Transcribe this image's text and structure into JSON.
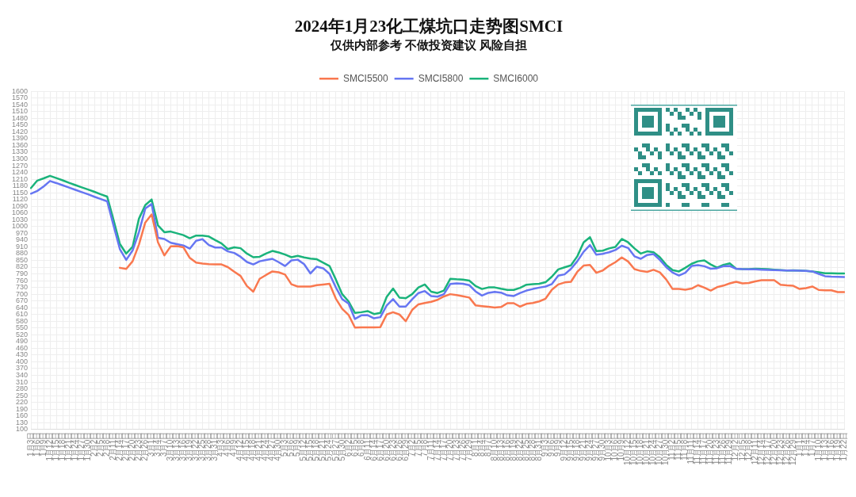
{
  "chart_data": {
    "type": "line",
    "title": "2024年1月23化工煤坑口走势图SMCI",
    "subtitle": "仅供内部参考 不做投资建议 风险自担",
    "categories": [
      "1月3日",
      "1月6日",
      "1月9日",
      "1月12日",
      "1月15日",
      "1月18日",
      "1月21日",
      "1月24日",
      "1月27日",
      "1月30日",
      "2月2日",
      "2月5日",
      "2月8日",
      "2月11日",
      "2月14日",
      "2月17日",
      "2月20日",
      "2月23日",
      "2月26日",
      "3月1日",
      "3月4日",
      "3月7日",
      "3月10日",
      "3月13日",
      "3月16日",
      "3月19日",
      "3月22日",
      "3月25日",
      "3月28日",
      "3月31日",
      "4月3日",
      "4月6日",
      "4月9日",
      "4月12日",
      "4月15日",
      "4月18日",
      "4月21日",
      "4月24日",
      "4月27日",
      "4月30日",
      "5月3日",
      "5月6日",
      "5月9日",
      "5月12日",
      "5月15日",
      "5月18日",
      "5月21日",
      "5月24日",
      "5月27日",
      "5月30日",
      "6月2日",
      "6月5日",
      "6月8日",
      "6月11日",
      "6月14日",
      "6月17日",
      "6月20日",
      "6月23日",
      "6月26日",
      "6月29日",
      "7月2日",
      "7月5日",
      "7月8日",
      "7月11日",
      "7月14日",
      "7月17日",
      "7月20日",
      "7月23日",
      "7月26日",
      "7月29日",
      "8月1日",
      "8月4日",
      "8月7日",
      "8月10日",
      "8月13日",
      "8月16日",
      "8月19日",
      "8月22日",
      "8月25日",
      "8月28日",
      "8月31日",
      "9月3日",
      "9月6日",
      "9月9日",
      "9月12日",
      "9月15日",
      "9月18日",
      "9月21日",
      "9月24日",
      "9月27日",
      "9月30日",
      "10月3日",
      "10月6日",
      "10月9日",
      "10月12日",
      "10月15日",
      "10月18日",
      "10月21日",
      "10月24日",
      "10月27日",
      "10月30日",
      "11月2日",
      "11月5日",
      "11月8日",
      "11月11日",
      "11月14日",
      "11月17日",
      "11月20日",
      "11月23日",
      "11月26日",
      "11月29日",
      "12月2日",
      "12月5日",
      "12月8日",
      "12月11日",
      "12月14日",
      "12月17日",
      "12月20日",
      "12月23日",
      "12月26日",
      "12月29日",
      "1月1日",
      "1月4日",
      "1月7日",
      "1月10日",
      "1月13日",
      "1月16日",
      "1月19日",
      "1月22日"
    ],
    "series": [
      {
        "name": "SMCI5500",
        "color": "#f9784f",
        "values": [
          null,
          null,
          null,
          null,
          null,
          null,
          null,
          null,
          null,
          null,
          null,
          null,
          null,
          null,
          817,
          812,
          846,
          920,
          1018,
          1054,
          930,
          872,
          912,
          913,
          908,
          861,
          840,
          836,
          833,
          832,
          832,
          820,
          800,
          781,
          736,
          711,
          768,
          785,
          801,
          797,
          787,
          744,
          734,
          734,
          734,
          740,
          743,
          746,
          680,
          635,
          608,
          552,
          553,
          553,
          553,
          554,
          610,
          620,
          610,
          580,
          630,
          655,
          661,
          666,
          675,
          690,
          700,
          696,
          691,
          685,
          650,
          647,
          644,
          641,
          643,
          660,
          660,
          645,
          657,
          661,
          668,
          680,
          720,
          743,
          752,
          755,
          799,
          827,
          830,
          795,
          805,
          826,
          842,
          863,
          845,
          811,
          803,
          799,
          808,
          797,
          765,
          723,
          723,
          720,
          725,
          740,
          729,
          716,
          731,
          738,
          748,
          755,
          748,
          750,
          757,
          762,
          762,
          762,
          742,
          739,
          737,
          723,
          727,
          734,
          719,
          717,
          717,
          709,
          709
        ]
      },
      {
        "name": "SMCI5800",
        "color": "#6676f2",
        "values": [
          1146,
          1158,
          1178,
          1202,
          1193,
          1183,
          1173,
          1163,
          1153,
          1143,
          1132,
          1122,
          1112,
          1005,
          900,
          852,
          894,
          975,
          1080,
          1100,
          950,
          945,
          928,
          922,
          916,
          902,
          937,
          944,
          918,
          907,
          907,
          890,
          883,
          866,
          843,
          832,
          846,
          852,
          857,
          842,
          825,
          850,
          853,
          833,
          792,
          822,
          815,
          790,
          730,
          678,
          658,
          590,
          606,
          607,
          593,
          598,
          650,
          678,
          645,
          645,
          677,
          705,
          714,
          692,
          689,
          700,
          745,
          748,
          746,
          740,
          712,
          694,
          706,
          710,
          707,
          695,
          692,
          705,
          716,
          723,
          729,
          734,
          745,
          782,
          788,
          812,
          846,
          888,
          918,
          875,
          879,
          886,
          896,
          915,
          905,
          868,
          857,
          874,
          878,
          852,
          820,
          796,
          783,
          795,
          825,
          829,
          824,
          813,
          815,
          824,
          825,
          813,
          811,
          810,
          810,
          809,
          808,
          807,
          806,
          805,
          805,
          804,
          803,
          801,
          790,
          780,
          778,
          777,
          776
        ]
      },
      {
        "name": "SMCI6000",
        "color": "#1ab37b",
        "values": [
          1171,
          1204,
          1214,
          1225,
          1215,
          1205,
          1194,
          1184,
          1174,
          1164,
          1154,
          1143,
          1133,
          1030,
          923,
          880,
          910,
          1035,
          1095,
          1120,
          1005,
          975,
          978,
          970,
          962,
          948,
          960,
          960,
          956,
          940,
          925,
          900,
          908,
          904,
          880,
          864,
          866,
          880,
          892,
          885,
          876,
          864,
          870,
          863,
          858,
          855,
          840,
          825,
          765,
          700,
          668,
          617,
          620,
          625,
          612,
          617,
          688,
          725,
          685,
          682,
          700,
          730,
          743,
          711,
          705,
          716,
          768,
          766,
          765,
          760,
          736,
          723,
          730,
          730,
          724,
          719,
          719,
          728,
          742,
          744,
          746,
          753,
          778,
          810,
          819,
          828,
          868,
          930,
          953,
          891,
          893,
          903,
          910,
          945,
          930,
          903,
          880,
          890,
          886,
          864,
          830,
          807,
          801,
          817,
          835,
          846,
          850,
          832,
          818,
          830,
          837,
          813,
          811,
          811,
          813,
          812,
          811,
          809,
          807,
          805,
          806,
          805,
          803,
          801,
          797,
          793,
          793,
          792,
          792
        ]
      }
    ],
    "ylim": [
      100,
      1600
    ],
    "yticks": [
      100,
      130,
      160,
      190,
      220,
      250,
      280,
      310,
      340,
      370,
      400,
      430,
      460,
      490,
      520,
      550,
      580,
      610,
      640,
      670,
      700,
      730,
      760,
      790,
      820,
      850,
      880,
      910,
      940,
      970,
      1000,
      1030,
      1060,
      1090,
      1120,
      1150,
      1180,
      1210,
      1240,
      1270,
      1300,
      1330,
      1360,
      1390,
      1420,
      1450,
      1480,
      1510,
      1540,
      1570,
      1600
    ],
    "grid": true,
    "legend": "top",
    "marker": "none",
    "line_style": "solid"
  }
}
